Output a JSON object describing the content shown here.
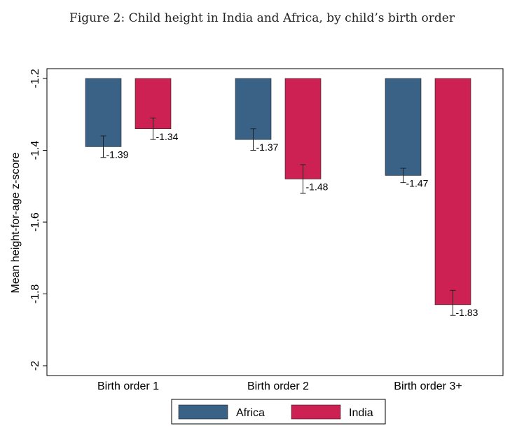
{
  "figure_title": "Figure 2: Child height in India and Africa, by child’s birth order",
  "chart_data": {
    "type": "bar",
    "title": "",
    "ylabel": "Mean height-for-age z-score",
    "xlabel": "",
    "categories": [
      "Birth order 1",
      "Birth order 2",
      "Birth order 3+"
    ],
    "ylim": [
      -2,
      -1.2
    ],
    "yticks": [
      -2,
      -1.8,
      -1.6,
      -1.4,
      -1.2
    ],
    "ytick_labels": [
      "-2",
      "-1.8",
      "-1.6",
      "-1.4",
      "-1.2"
    ],
    "baseline": -1.2,
    "series": [
      {
        "name": "Africa",
        "color": "#3a6287",
        "values": [
          -1.39,
          -1.37,
          -1.47
        ],
        "labels": [
          "-1.39",
          "-1.37",
          "-1.47"
        ],
        "ci_low": [
          -1.42,
          -1.4,
          -1.49
        ],
        "ci_high": [
          -1.36,
          -1.34,
          -1.45
        ]
      },
      {
        "name": "India",
        "color": "#cc2152",
        "values": [
          -1.34,
          -1.48,
          -1.83
        ],
        "labels": [
          "-1.34",
          "-1.48",
          "-1.83"
        ],
        "ci_low": [
          -1.37,
          -1.52,
          -1.86
        ],
        "ci_high": [
          -1.31,
          -1.44,
          -1.79
        ]
      }
    ],
    "grid": false,
    "legend_position": "bottom"
  }
}
